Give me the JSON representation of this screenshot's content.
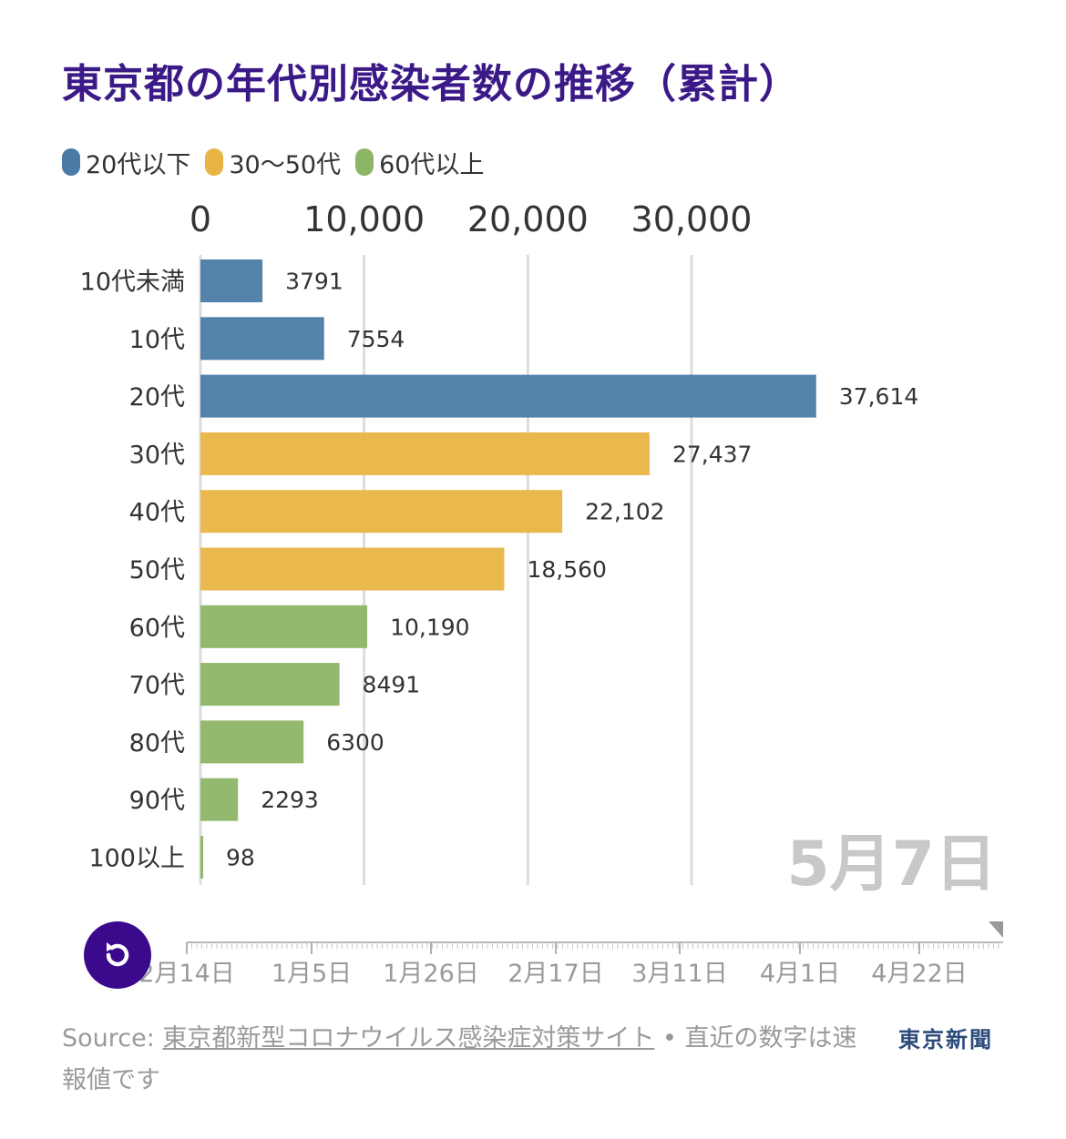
{
  "title": "東京都の年代別感染者数の推移（累計）",
  "legend": [
    {
      "label": "20代以下",
      "color": "#4a7ba7"
    },
    {
      "label": "30〜50代",
      "color": "#e8b544"
    },
    {
      "label": "60代以上",
      "color": "#8db566"
    }
  ],
  "chart_data": {
    "type": "bar",
    "orientation": "horizontal",
    "title": "東京都の年代別感染者数の推移（累計）",
    "categories": [
      "10代未満",
      "10代",
      "20代",
      "30代",
      "40代",
      "50代",
      "60代",
      "70代",
      "80代",
      "90代",
      "100以上"
    ],
    "values": [
      3791,
      7554,
      37614,
      27437,
      22102,
      18560,
      10190,
      8491,
      6300,
      2293,
      98
    ],
    "value_labels": [
      "3791",
      "7554",
      "37,614",
      "27,437",
      "22,102",
      "18,560",
      "10,190",
      "8491",
      "6300",
      "2293",
      "98"
    ],
    "groups": [
      0,
      0,
      0,
      1,
      1,
      1,
      2,
      2,
      2,
      2,
      2
    ],
    "group_colors": [
      "#4a7ba7",
      "#e8b544",
      "#8db566"
    ],
    "axis_ticks": [
      0,
      10000,
      20000,
      30000
    ],
    "axis_tick_labels": [
      "0",
      "10,000",
      "20,000",
      "30,000"
    ],
    "xlim": [
      0,
      38500
    ],
    "axis_position": "top",
    "grid": true,
    "legend_position": "top-left"
  },
  "current_date": "5月7日",
  "timeline": {
    "labels": [
      "2月14日",
      "1月5日",
      "1月26日",
      "2月17日",
      "3月11日",
      "4月1日",
      "4月22日"
    ],
    "progress": 1.0
  },
  "footer": {
    "source_prefix": "Source: ",
    "source_link": "東京都新型コロナウイルス感染症対策サイト",
    "separator": " • ",
    "note": "直近の数字は速報値です"
  },
  "brand": "東京新聞"
}
